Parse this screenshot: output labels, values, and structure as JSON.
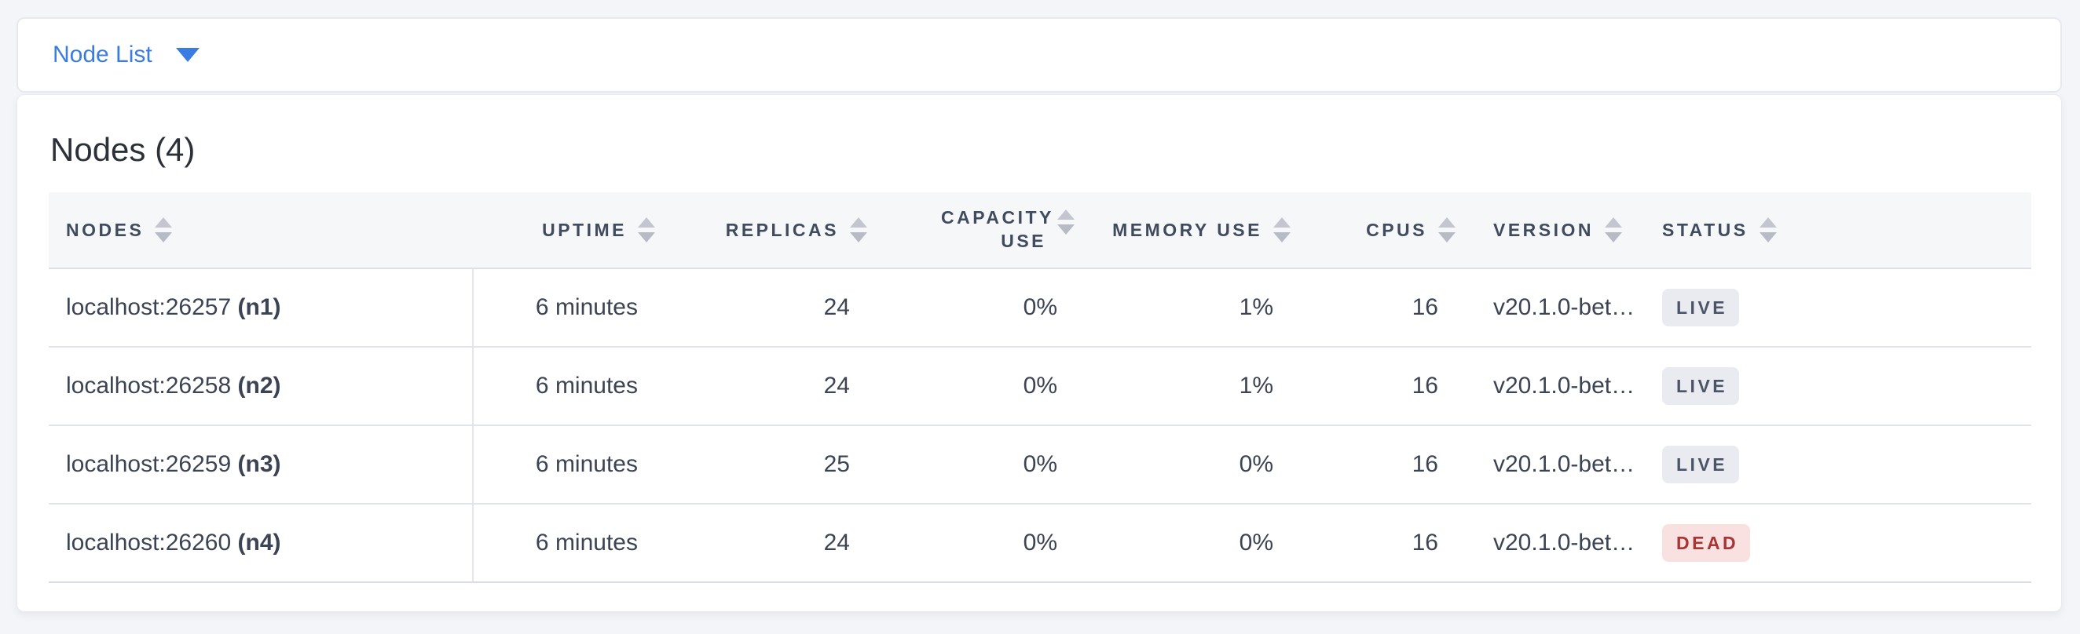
{
  "header_bar": {
    "dropdown_label": "Node List",
    "accent_color": "#3a7ce2"
  },
  "main": {
    "title": "Nodes (4)",
    "table": {
      "columns": [
        {
          "label": "NODES",
          "align": "left"
        },
        {
          "label": "UPTIME",
          "align": "right"
        },
        {
          "label": "REPLICAS",
          "align": "right"
        },
        {
          "label": "CAPACITY USE",
          "align": "right"
        },
        {
          "label": "MEMORY USE",
          "align": "right"
        },
        {
          "label": "CPUS",
          "align": "right"
        },
        {
          "label": "VERSION",
          "align": "left"
        },
        {
          "label": "STATUS",
          "align": "left"
        }
      ],
      "rows": [
        {
          "address": "localhost:26257",
          "node": "(n1)",
          "uptime": "6 minutes",
          "replicas": "24",
          "capacity_use": "0%",
          "memory_use": "1%",
          "cpus": "16",
          "version": "v20.1.0-bet…",
          "status": "LIVE"
        },
        {
          "address": "localhost:26258",
          "node": "(n2)",
          "uptime": "6 minutes",
          "replicas": "24",
          "capacity_use": "0%",
          "memory_use": "1%",
          "cpus": "16",
          "version": "v20.1.0-bet…",
          "status": "LIVE"
        },
        {
          "address": "localhost:26259",
          "node": "(n3)",
          "uptime": "6 minutes",
          "replicas": "25",
          "capacity_use": "0%",
          "memory_use": "0%",
          "cpus": "16",
          "version": "v20.1.0-bet…",
          "status": "LIVE"
        },
        {
          "address": "localhost:26260",
          "node": "(n4)",
          "uptime": "6 minutes",
          "replicas": "24",
          "capacity_use": "0%",
          "memory_use": "0%",
          "cpus": "16",
          "version": "v20.1.0-bet…",
          "status": "DEAD"
        }
      ],
      "status_colors": {
        "LIVE": {
          "bg": "#e9ebf1",
          "text": "#4c5568"
        },
        "DEAD": {
          "bg": "#f9e1e1",
          "text": "#a93434"
        }
      }
    }
  }
}
